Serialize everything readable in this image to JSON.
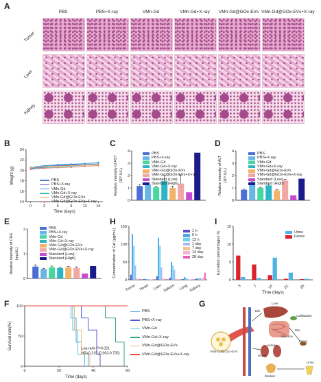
{
  "panels": {
    "A": "A",
    "B": "B",
    "C": "C",
    "D": "D",
    "E": "E",
    "F": "F",
    "G": "G",
    "H": "H",
    "I": "I"
  },
  "groups": [
    "PBS",
    "PBS+X-ray",
    "VMn-Gd",
    "VMn-Gd+X-ray",
    "VMn-Gd@GOx-EVs",
    "VMn-Gd@GOx-EVs+X-ray"
  ],
  "tissues": [
    "Tumor",
    "Liver",
    "Kidney"
  ],
  "colors": {
    "tissue_bg": "#e6a9cf",
    "tissue_dark": "#a54b8d",
    "tissue_light": "#f6dbe9"
  },
  "weight_legend": [
    "PBS",
    "PBS+X-ray",
    "VMn-Gd",
    "VMn-Gd+X-ray",
    "VMn-Gd@GOx-EVs",
    "VMn-Gd@GOx-EVs+X-ray"
  ],
  "bar_legend": [
    "PBS",
    "PBS+X-ray",
    "VMn-Gd",
    "VMn-Gd+X-ray",
    "VMn-Gd@GOx-EVs",
    "VMn-Gd@GOx-EVs+X-ray",
    "Standard (Low)",
    "Standard (High)"
  ],
  "bar_colors": [
    "#4c6fd6",
    "#66b6e6",
    "#48d6a0",
    "#2bb5c5",
    "#f2b46b",
    "#f0a8a4",
    "#c64bcf",
    "#1b1b8c"
  ],
  "h_legend": [
    "1 h",
    "6 h",
    "12 h",
    "1 day",
    "7 day",
    "14 day",
    "28 day"
  ],
  "h_colors": [
    "#5a4fc9",
    "#4ea6e6",
    "#6fd0f0",
    "#a7b8f4",
    "#f5c28e",
    "#f5b5d1",
    "#e75fb0"
  ],
  "i_legend": [
    "Urine",
    "Feces"
  ],
  "i_colors": [
    "#4fb3e6",
    "#d9242b"
  ],
  "f_legend": [
    "PBS",
    "PBS+X-ray",
    "VMn-Gd",
    "VMn-Gd+X-ray",
    "VMn-Gd@GOx-EVs",
    "VMn-Gd@GOx-EVs+X-ray"
  ],
  "f_colors": [
    "#4aa1e6",
    "#5458d9",
    "#4fc3e0",
    "#2aa57d",
    "#e8c07a",
    "#e34a3b"
  ],
  "f_stats": {
    "line1": "Log-rank P=0.021",
    "line2": "HR=0.215  (0.063-0.735)"
  },
  "g_labels": {
    "liver": "Liver",
    "bile": "Bile",
    "gallbladder": "Gallbladder",
    "intestine": "Intestine",
    "bile2": "Bile",
    "feces": "Feces",
    "kidney": "Kidney",
    "renal": "Renal",
    "urine": "Urine",
    "bladder": "Bladder",
    "vesicle": "VMn-Gd@GOx-EVs"
  },
  "chart_data": [
    {
      "panel": "B",
      "type": "line",
      "xlabel": "Time (days)",
      "ylabel": "Weight (g)",
      "x": [
        0,
        3,
        6,
        9,
        12,
        15
      ],
      "xlim": [
        -1,
        16
      ],
      "ylim": [
        14,
        24
      ],
      "yticks": [
        14,
        16,
        18,
        20,
        22,
        24
      ],
      "xticks": [
        0,
        3,
        6,
        9,
        12,
        15
      ],
      "series": [
        {
          "name": "PBS",
          "values": [
            20.5,
            20.8,
            21.0,
            21.1,
            21.3,
            21.5
          ]
        },
        {
          "name": "PBS+X-ray",
          "values": [
            20.4,
            20.6,
            20.9,
            21.0,
            21.1,
            21.2
          ]
        },
        {
          "name": "VMn-Gd",
          "values": [
            20.6,
            20.9,
            21.1,
            21.2,
            21.3,
            21.4
          ]
        },
        {
          "name": "VMn-Gd+X-ray",
          "values": [
            20.3,
            20.5,
            20.6,
            20.8,
            21.0,
            21.2
          ]
        },
        {
          "name": "VMn-Gd@GOx-EVs",
          "values": [
            20.5,
            20.7,
            20.8,
            20.9,
            21.0,
            21.1
          ]
        },
        {
          "name": "VMn-Gd@GOx-EVs+X-ray",
          "values": [
            20.2,
            20.4,
            20.5,
            20.6,
            20.8,
            20.9
          ]
        }
      ]
    },
    {
      "panel": "C",
      "type": "bar",
      "ylabel": "Relative intensity of AST (10³ U/L)",
      "ylim": [
        0,
        4
      ],
      "yticks": [
        0,
        1,
        2,
        3,
        4
      ],
      "categories": [
        "PBS",
        "PBS+X-ray",
        "VMn-Gd",
        "VMn-Gd+X-ray",
        "VMn-Gd@GOx-EVs",
        "VMn-Gd@GOx-EVs+X-ray",
        "Standard (Low)",
        "Standard (High)"
      ],
      "values": [
        1.15,
        1.25,
        1.05,
        1.55,
        1.0,
        1.35,
        0.65,
        3.85
      ],
      "errors": [
        0.1,
        0.1,
        0.1,
        0.45,
        0.15,
        0.7,
        0,
        0
      ]
    },
    {
      "panel": "D",
      "type": "bar",
      "ylabel": "Relative intensity of ALT (10³ U/L)",
      "ylim": [
        0,
        4
      ],
      "yticks": [
        0,
        1,
        2,
        3,
        4
      ],
      "categories": [
        "PBS",
        "PBS+X-ray",
        "VMn-Gd",
        "VMn-Gd+X-ray",
        "VMn-Gd@GOx-EVs",
        "VMn-Gd@GOx-EVs+X-ray",
        "Standard (Low)",
        "Standard (High)"
      ],
      "values": [
        0.85,
        1.5,
        1.0,
        1.2,
        0.8,
        1.6,
        0.4,
        1.75
      ],
      "errors": [
        0.05,
        0.05,
        0.05,
        0.1,
        0.05,
        0.1,
        0,
        0
      ]
    },
    {
      "panel": "E",
      "type": "bar",
      "ylabel": "Relative intensity of CRE (mg/dL)",
      "ylim": [
        0,
        2
      ],
      "yticks": [
        0,
        1,
        2
      ],
      "categories": [
        "PBS",
        "PBS+X-ray",
        "VMn-Gd",
        "VMn-Gd+X-ray",
        "VMn-Gd@GOx-EVs",
        "VMn-Gd@GOx-EVs+X-ray",
        "Standard (Low)",
        "Standard (High)"
      ],
      "values": [
        0.48,
        0.38,
        0.45,
        0.42,
        0.45,
        0.42,
        0.2,
        0.5
      ],
      "errors": [
        0.07,
        0.03,
        0.05,
        0.03,
        0.03,
        0.05,
        0,
        0
      ]
    },
    {
      "panel": "H",
      "type": "bar",
      "ylabel": "Concentration of Gd (μg/mL)",
      "ylim": [
        0,
        150
      ],
      "yticks": [
        0,
        50,
        100,
        150
      ],
      "categories": [
        "Tumor",
        "Heart",
        "Liver",
        "Spleen",
        "Lung",
        "Kidney"
      ],
      "series": [
        {
          "name": "1 h",
          "values": [
            14,
            2,
            10,
            6,
            2,
            3
          ]
        },
        {
          "name": "6 h",
          "values": [
            128,
            3,
            118,
            50,
            8,
            4
          ]
        },
        {
          "name": "12 h",
          "values": [
            95,
            2,
            95,
            40,
            6,
            5
          ]
        },
        {
          "name": "1 day",
          "values": [
            40,
            2,
            35,
            28,
            3,
            6
          ]
        },
        {
          "name": "7 day",
          "values": [
            4,
            1,
            5,
            2,
            1,
            3
          ]
        },
        {
          "name": "14 day",
          "values": [
            3,
            1,
            3,
            2,
            1,
            7
          ]
        },
        {
          "name": "28 day",
          "values": [
            2,
            1,
            2,
            1,
            1,
            20
          ]
        }
      ]
    },
    {
      "panel": "I",
      "type": "bar",
      "ylabel": "Excretion percentages %",
      "xlabel": "Time (days)",
      "ylim": [
        0,
        15
      ],
      "yticks": [
        0,
        5,
        10,
        15
      ],
      "categories": [
        "3",
        "7",
        "14",
        "21",
        "28"
      ],
      "series": [
        {
          "name": "Urine",
          "values": [
            0.8,
            0.5,
            6.2,
            2.0,
            0.3
          ]
        },
        {
          "name": "Feces",
          "values": [
            6.8,
            4.3,
            1.3,
            0.3,
            0.2
          ]
        }
      ]
    },
    {
      "panel": "F",
      "type": "line",
      "xlabel": "Time (days)",
      "ylabel": "Survival rate(%)",
      "xlim": [
        0,
        60
      ],
      "ylim": [
        0,
        100
      ],
      "xticks": [
        0,
        20,
        40,
        60
      ],
      "yticks": [
        0,
        50,
        100
      ],
      "series": [
        {
          "name": "PBS",
          "x": [
            0,
            27,
            30,
            33,
            37
          ],
          "y": [
            100,
            80,
            40,
            20,
            0
          ]
        },
        {
          "name": "PBS+X-ray",
          "x": [
            0,
            33,
            37,
            42,
            44
          ],
          "y": [
            100,
            80,
            60,
            20,
            0
          ]
        },
        {
          "name": "VMn-Gd",
          "x": [
            0,
            28,
            31,
            35
          ],
          "y": [
            100,
            60,
            20,
            0
          ]
        },
        {
          "name": "VMn-Gd+X-ray",
          "x": [
            0,
            47,
            53,
            58
          ],
          "y": [
            100,
            80,
            40,
            0
          ]
        },
        {
          "name": "VMn-Gd@GOx-EVs",
          "x": [
            0,
            29,
            33,
            38
          ],
          "y": [
            100,
            60,
            20,
            0
          ]
        },
        {
          "name": "VMn-Gd@GOx-EVs+X-ray",
          "x": [
            0,
            60
          ],
          "y": [
            100,
            100
          ]
        }
      ]
    }
  ]
}
